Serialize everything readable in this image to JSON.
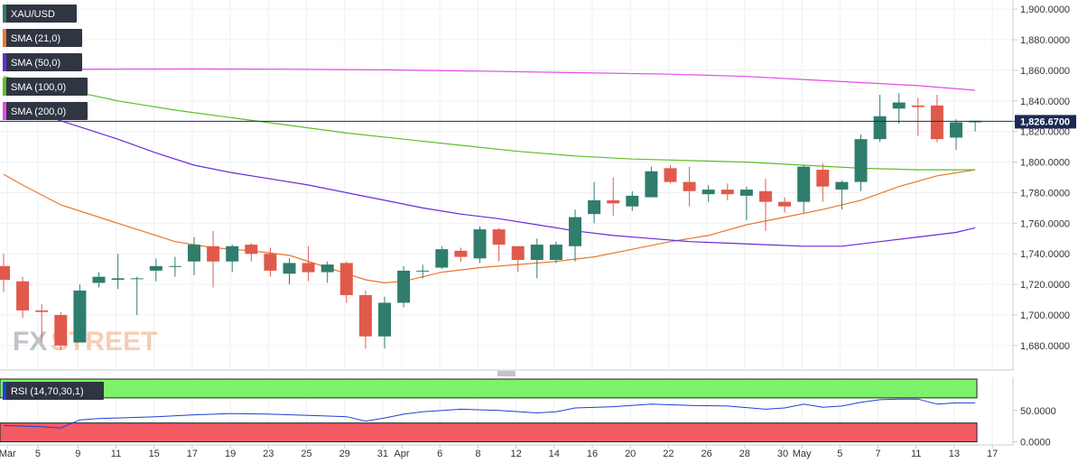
{
  "chart_data": [
    {
      "type": "candlestick",
      "symbol": "XAU/USD",
      "legend": [
        {
          "label": "XAU/USD",
          "color": "#2f7d6d"
        },
        {
          "label": "SMA (21,0)",
          "color": "#e8772e"
        },
        {
          "label": "SMA (50,0)",
          "color": "#6a2bd9"
        },
        {
          "label": "SMA (100,0)",
          "color": "#5cbf2a"
        },
        {
          "label": "SMA (200,0)",
          "color": "#e34de8"
        }
      ],
      "ylim": [
        1664,
        1906
      ],
      "y_ticks": [
        "1,680.0000",
        "1,700.0000",
        "1,720.0000",
        "1,740.0000",
        "1,760.0000",
        "1,780.0000",
        "1,800.0000",
        "1,820.0000",
        "1,840.0000",
        "1,860.0000",
        "1,880.0000",
        "1,900.0000"
      ],
      "y_tick_values": [
        1680,
        1700,
        1720,
        1740,
        1760,
        1780,
        1800,
        1820,
        1840,
        1860,
        1880,
        1900
      ],
      "current_price": {
        "label": "1,826.6700",
        "value": 1826.67
      },
      "x_ticks": [
        {
          "label": "Mar",
          "day": 0.2
        },
        {
          "label": "5",
          "day": 1.8
        },
        {
          "label": "9",
          "day": 3.9
        },
        {
          "label": "11",
          "day": 5.9
        },
        {
          "label": "15",
          "day": 7.9
        },
        {
          "label": "17",
          "day": 9.9
        },
        {
          "label": "19",
          "day": 11.9
        },
        {
          "label": "23",
          "day": 13.9
        },
        {
          "label": "25",
          "day": 15.9
        },
        {
          "label": "29",
          "day": 17.9
        },
        {
          "label": "31",
          "day": 19.9
        },
        {
          "label": "Apr",
          "day": 20.9
        },
        {
          "label": "6",
          "day": 22.9
        },
        {
          "label": "8",
          "day": 24.9
        },
        {
          "label": "12",
          "day": 26.9
        },
        {
          "label": "14",
          "day": 28.9
        },
        {
          "label": "16",
          "day": 30.9
        },
        {
          "label": "20",
          "day": 32.9
        },
        {
          "label": "22",
          "day": 34.9
        },
        {
          "label": "26",
          "day": 36.9
        },
        {
          "label": "28",
          "day": 38.9
        },
        {
          "label": "30",
          "day": 40.9
        },
        {
          "label": "May",
          "day": 41.9
        },
        {
          "label": "5",
          "day": 43.9
        },
        {
          "label": "7",
          "day": 45.9
        },
        {
          "label": "11",
          "day": 47.9
        },
        {
          "label": "13",
          "day": 49.9
        },
        {
          "label": "17",
          "day": 51.9
        }
      ],
      "candles": [
        {
          "o": 1732,
          "h": 1740,
          "l": 1715,
          "c": 1723
        },
        {
          "o": 1722,
          "h": 1725,
          "l": 1698,
          "c": 1703
        },
        {
          "o": 1703,
          "h": 1707,
          "l": 1682,
          "c": 1702
        },
        {
          "o": 1700,
          "h": 1702,
          "l": 1677,
          "c": 1680
        },
        {
          "o": 1682,
          "h": 1720,
          "l": 1682,
          "c": 1716
        },
        {
          "o": 1721,
          "h": 1728,
          "l": 1718,
          "c": 1725
        },
        {
          "o": 1723,
          "h": 1740,
          "l": 1717,
          "c": 1724
        },
        {
          "o": 1724,
          "h": 1725,
          "l": 1700,
          "c": 1724
        },
        {
          "o": 1729,
          "h": 1737,
          "l": 1722,
          "c": 1732
        },
        {
          "o": 1732,
          "h": 1738,
          "l": 1725,
          "c": 1732
        },
        {
          "o": 1735,
          "h": 1751,
          "l": 1726,
          "c": 1746
        },
        {
          "o": 1745,
          "h": 1755,
          "l": 1718,
          "c": 1735
        },
        {
          "o": 1735,
          "h": 1746,
          "l": 1728,
          "c": 1745
        },
        {
          "o": 1746,
          "h": 1747,
          "l": 1735,
          "c": 1740
        },
        {
          "o": 1740,
          "h": 1744,
          "l": 1725,
          "c": 1729
        },
        {
          "o": 1727,
          "h": 1737,
          "l": 1720,
          "c": 1734
        },
        {
          "o": 1734,
          "h": 1745,
          "l": 1722,
          "c": 1728
        },
        {
          "o": 1728,
          "h": 1735,
          "l": 1721,
          "c": 1733
        },
        {
          "o": 1734,
          "h": 1735,
          "l": 1708,
          "c": 1713
        },
        {
          "o": 1713,
          "h": 1716,
          "l": 1678,
          "c": 1686
        },
        {
          "o": 1686,
          "h": 1712,
          "l": 1678,
          "c": 1708
        },
        {
          "o": 1708,
          "h": 1732,
          "l": 1705,
          "c": 1729
        },
        {
          "o": 1729,
          "h": 1733,
          "l": 1724,
          "c": 1729
        },
        {
          "o": 1731,
          "h": 1745,
          "l": 1730,
          "c": 1743
        },
        {
          "o": 1742,
          "h": 1744,
          "l": 1735,
          "c": 1738
        },
        {
          "o": 1737,
          "h": 1758,
          "l": 1734,
          "c": 1756
        },
        {
          "o": 1756,
          "h": 1757,
          "l": 1735,
          "c": 1746
        },
        {
          "o": 1745,
          "h": 1745,
          "l": 1728,
          "c": 1736
        },
        {
          "o": 1736,
          "h": 1750,
          "l": 1724,
          "c": 1746
        },
        {
          "o": 1736,
          "h": 1748,
          "l": 1734,
          "c": 1746
        },
        {
          "o": 1745,
          "h": 1769,
          "l": 1735,
          "c": 1764
        },
        {
          "o": 1766,
          "h": 1787,
          "l": 1760,
          "c": 1775
        },
        {
          "o": 1775,
          "h": 1790,
          "l": 1765,
          "c": 1773
        },
        {
          "o": 1771,
          "h": 1781,
          "l": 1768,
          "c": 1778
        },
        {
          "o": 1777,
          "h": 1797,
          "l": 1777,
          "c": 1794
        },
        {
          "o": 1796,
          "h": 1798,
          "l": 1786,
          "c": 1787
        },
        {
          "o": 1787,
          "h": 1797,
          "l": 1771,
          "c": 1781
        },
        {
          "o": 1779,
          "h": 1785,
          "l": 1774,
          "c": 1782
        },
        {
          "o": 1782,
          "h": 1786,
          "l": 1775,
          "c": 1779
        },
        {
          "o": 1778,
          "h": 1784,
          "l": 1762,
          "c": 1782
        },
        {
          "o": 1781,
          "h": 1789,
          "l": 1755,
          "c": 1774
        },
        {
          "o": 1774,
          "h": 1777,
          "l": 1767,
          "c": 1771
        },
        {
          "o": 1774,
          "h": 1798,
          "l": 1767,
          "c": 1797
        },
        {
          "o": 1795,
          "h": 1799,
          "l": 1774,
          "c": 1784
        },
        {
          "o": 1782,
          "h": 1788,
          "l": 1769,
          "c": 1787
        },
        {
          "o": 1787,
          "h": 1818,
          "l": 1781,
          "c": 1815
        },
        {
          "o": 1815,
          "h": 1844,
          "l": 1813,
          "c": 1830
        },
        {
          "o": 1835,
          "h": 1845,
          "l": 1825,
          "c": 1839
        },
        {
          "o": 1837,
          "h": 1842,
          "l": 1817,
          "c": 1836
        },
        {
          "o": 1837,
          "h": 1844,
          "l": 1813,
          "c": 1815
        },
        {
          "o": 1816,
          "h": 1828,
          "l": 1808,
          "c": 1826
        },
        {
          "o": 1826,
          "h": 1827,
          "l": 1820,
          "c": 1827
        }
      ],
      "sma": [
        {
          "label": "SMA (21,0)",
          "color": "#e8772e",
          "points": [
            [
              0,
              1792
            ],
            [
              1,
              1785
            ],
            [
              3,
              1772
            ],
            [
              6,
              1760
            ],
            [
              9,
              1748
            ],
            [
              11,
              1744
            ],
            [
              13,
              1742
            ],
            [
              15,
              1739
            ],
            [
              17,
              1731
            ],
            [
              19,
              1723
            ],
            [
              20,
              1721
            ],
            [
              21,
              1722
            ],
            [
              22,
              1725
            ],
            [
              23,
              1728
            ],
            [
              25,
              1731
            ],
            [
              27,
              1733
            ],
            [
              29,
              1735
            ],
            [
              31,
              1738
            ],
            [
              33,
              1743
            ],
            [
              35,
              1748
            ],
            [
              37,
              1752
            ],
            [
              39,
              1759
            ],
            [
              41,
              1764
            ],
            [
              43,
              1769
            ],
            [
              45,
              1775
            ],
            [
              47,
              1784
            ],
            [
              49,
              1791
            ],
            [
              51,
              1795
            ]
          ]
        },
        {
          "label": "SMA (50,0)",
          "color": "#6a2bd9",
          "points": [
            [
              0,
              1839
            ],
            [
              2,
              1831
            ],
            [
              4,
              1823
            ],
            [
              6,
              1815
            ],
            [
              8,
              1806
            ],
            [
              10,
              1798
            ],
            [
              12,
              1793
            ],
            [
              14,
              1789
            ],
            [
              16,
              1785
            ],
            [
              18,
              1780
            ],
            [
              20,
              1775
            ],
            [
              22,
              1770
            ],
            [
              24,
              1766
            ],
            [
              26,
              1763
            ],
            [
              28,
              1759
            ],
            [
              30,
              1755
            ],
            [
              32,
              1752
            ],
            [
              34,
              1750
            ],
            [
              36,
              1748
            ],
            [
              38,
              1747
            ],
            [
              40,
              1746
            ],
            [
              42,
              1745
            ],
            [
              44,
              1745
            ],
            [
              46,
              1748
            ],
            [
              48,
              1751
            ],
            [
              50,
              1754
            ],
            [
              51,
              1757
            ]
          ]
        },
        {
          "label": "SMA (100,0)",
          "color": "#5cbf2a",
          "points": [
            [
              0,
              1856
            ],
            [
              3,
              1848
            ],
            [
              6,
              1840
            ],
            [
              9,
              1834
            ],
            [
              12,
              1829
            ],
            [
              15,
              1824
            ],
            [
              18,
              1819
            ],
            [
              21,
              1815
            ],
            [
              24,
              1811
            ],
            [
              27,
              1807
            ],
            [
              30,
              1804
            ],
            [
              33,
              1802
            ],
            [
              36,
              1801
            ],
            [
              39,
              1800
            ],
            [
              42,
              1798
            ],
            [
              45,
              1796
            ],
            [
              48,
              1795
            ],
            [
              51,
              1795
            ]
          ]
        },
        {
          "label": "SMA (200,0)",
          "color": "#e34de8",
          "points": [
            [
              0,
              1860.5
            ],
            [
              5,
              1860.8
            ],
            [
              10,
              1860.9
            ],
            [
              15,
              1860.7
            ],
            [
              20,
              1860.3
            ],
            [
              25,
              1859.5
            ],
            [
              30,
              1858.5
            ],
            [
              35,
              1857.5
            ],
            [
              39,
              1856
            ],
            [
              42,
              1854
            ],
            [
              45,
              1852
            ],
            [
              48,
              1850
            ],
            [
              51,
              1847
            ]
          ]
        }
      ]
    },
    {
      "type": "line",
      "legend_label": "RSI (14,70,30,1)",
      "overbought": 70,
      "oversold": 30,
      "y_ticks": [
        "50.0000",
        "0.0000"
      ],
      "y_tick_values": [
        50,
        0
      ],
      "ylim": [
        -5,
        100
      ],
      "colors": {
        "line": "#1f3fd6",
        "overbought_zone": "#7cf26a",
        "oversold_zone": "#f25b64"
      },
      "points": [
        [
          0,
          26
        ],
        [
          2,
          24
        ],
        [
          3,
          22
        ],
        [
          4,
          35
        ],
        [
          5,
          37
        ],
        [
          6,
          38
        ],
        [
          8,
          40
        ],
        [
          10,
          43
        ],
        [
          12,
          45
        ],
        [
          14,
          44
        ],
        [
          16,
          42
        ],
        [
          18,
          40
        ],
        [
          19,
          33
        ],
        [
          20,
          38
        ],
        [
          21,
          44
        ],
        [
          22,
          48
        ],
        [
          24,
          52
        ],
        [
          26,
          50
        ],
        [
          28,
          46
        ],
        [
          29,
          48
        ],
        [
          30,
          54
        ],
        [
          32,
          56
        ],
        [
          34,
          60
        ],
        [
          36,
          58
        ],
        [
          38,
          57
        ],
        [
          40,
          52
        ],
        [
          41,
          54
        ],
        [
          42,
          60
        ],
        [
          43,
          55
        ],
        [
          44,
          57
        ],
        [
          45,
          63
        ],
        [
          46,
          67
        ],
        [
          47,
          68
        ],
        [
          48,
          68
        ],
        [
          49,
          60
        ],
        [
          50,
          62
        ],
        [
          51,
          62
        ]
      ]
    }
  ],
  "watermark": {
    "part1": "FX",
    "part2": "STREET"
  }
}
